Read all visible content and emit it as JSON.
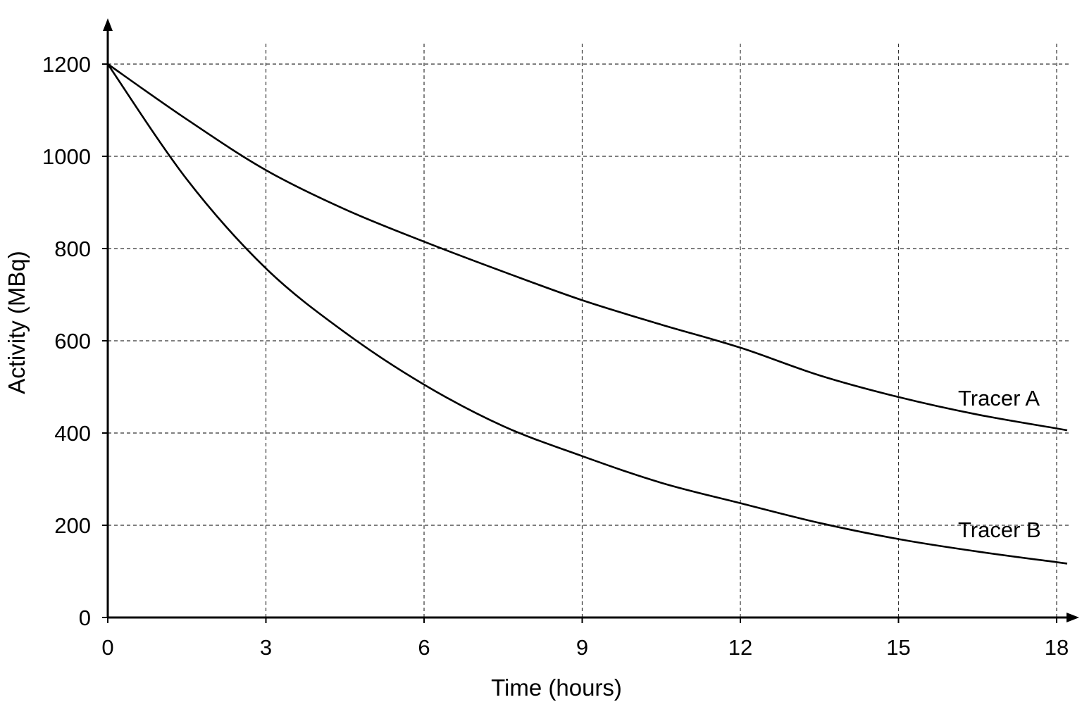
{
  "chart_data": {
    "type": "line",
    "title": "",
    "xlabel": "Time (hours)",
    "ylabel": "Activity (MBq)",
    "xlim": [
      0,
      18
    ],
    "ylim": [
      0,
      1200
    ],
    "xticks": [
      0,
      3,
      6,
      9,
      12,
      15,
      18
    ],
    "yticks": [
      0,
      200,
      400,
      600,
      800,
      1000,
      1200
    ],
    "grid": true,
    "series": [
      {
        "name": "Tracer A",
        "x": [
          0,
          1.5,
          3,
          4.5,
          6,
          7.5,
          9,
          10.5,
          12,
          13.5,
          15,
          16.5,
          18
        ],
        "y": [
          1200,
          1080,
          970,
          885,
          815,
          750,
          688,
          635,
          585,
          525,
          478,
          440,
          410
        ]
      },
      {
        "name": "Tracer B",
        "x": [
          0,
          1.5,
          3,
          4.5,
          6,
          7.5,
          9,
          10.5,
          12,
          13.5,
          15,
          16.5,
          18
        ],
        "y": [
          1200,
          950,
          757,
          618,
          505,
          415,
          350,
          292,
          248,
          205,
          170,
          143,
          120
        ]
      }
    ]
  }
}
